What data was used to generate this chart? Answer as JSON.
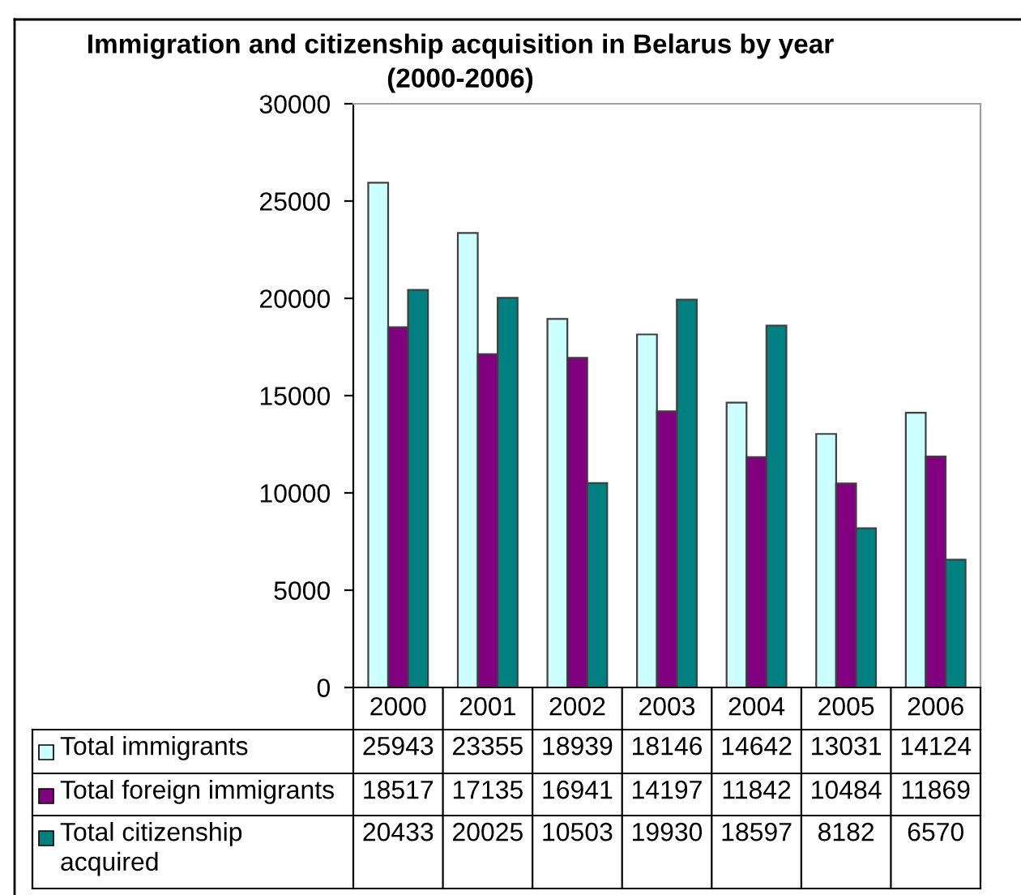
{
  "chart_data": {
    "type": "bar",
    "title": "Immigration and citizenship acquisition in Belarus by year (2000-2006)",
    "categories": [
      "2000",
      "2001",
      "2002",
      "2003",
      "2004",
      "2005",
      "2006"
    ],
    "series": [
      {
        "name": "Total immigrants",
        "color": "#ccffff",
        "values": [
          25943,
          23355,
          18939,
          18146,
          14642,
          13031,
          14124
        ]
      },
      {
        "name": "Total foreign immigrants",
        "color": "#800080",
        "values": [
          18517,
          17135,
          16941,
          14197,
          11842,
          10484,
          11869
        ]
      },
      {
        "name": "Total citizenship acquired",
        "color": "#008080",
        "values": [
          20433,
          20025,
          10503,
          19930,
          18597,
          8182,
          6570
        ]
      }
    ],
    "ylim": [
      0,
      30000
    ],
    "yticks": [
      0,
      5000,
      10000,
      15000,
      20000,
      25000,
      30000
    ],
    "grid": false,
    "legend": "bottom",
    "data_labels": true
  }
}
